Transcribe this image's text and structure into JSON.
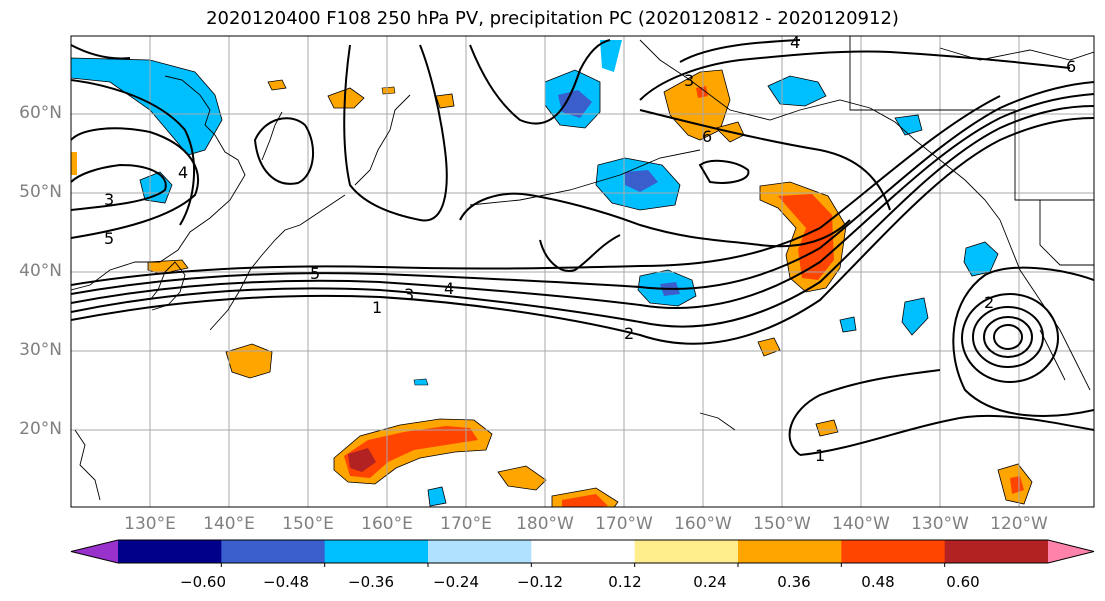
{
  "title": "2020120400 F108 250 hPa PV, precipitation PC (2020120812 - 2020120912)",
  "map": {
    "lat_labels": [
      "60°N",
      "50°N",
      "40°N",
      "30°N",
      "20°N"
    ],
    "lon_labels": [
      "130°E",
      "140°E",
      "150°E",
      "160°E",
      "170°E",
      "180°W",
      "170°W",
      "160°W",
      "150°W",
      "140°W",
      "130°W",
      "120°W"
    ],
    "contour_labels": [
      "3",
      "5",
      "5",
      "4",
      "3",
      "1",
      "2",
      "1",
      "4",
      "4",
      "6",
      "6",
      "2",
      "3"
    ]
  },
  "colorbar": {
    "tick_labels": [
      "−0.60",
      "−0.48",
      "−0.36",
      "−0.24",
      "−0.12",
      "0.12",
      "0.24",
      "0.36",
      "0.48",
      "0.60"
    ],
    "colors": [
      "#9932CC",
      "#00008B",
      "#3A5FCD",
      "#00BFFF",
      "#B0E2FF",
      "#FFFFFF",
      "#FFEC8B",
      "#FFA500",
      "#FF4500",
      "#B22222",
      "#FF82AB"
    ]
  }
}
